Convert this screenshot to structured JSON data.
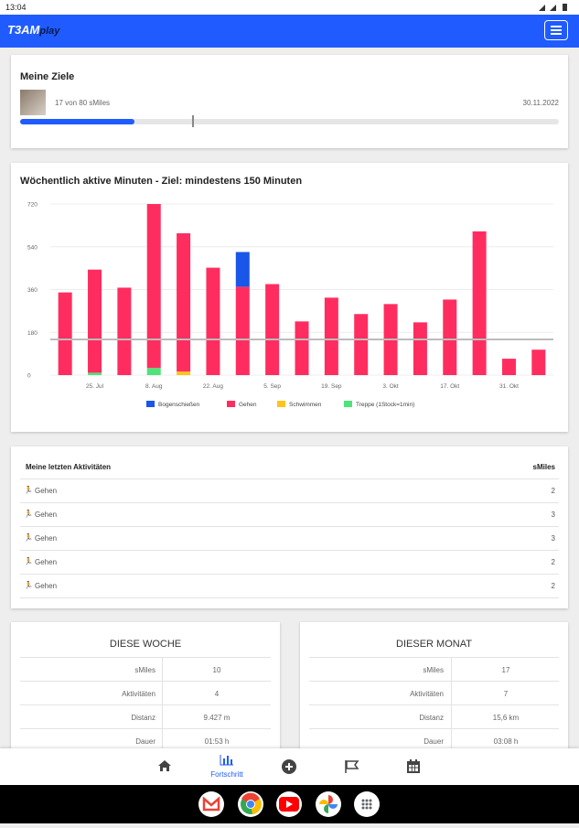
{
  "status_bar": {
    "time": "13:04"
  },
  "header": {
    "logo": "T3AM",
    "logo_suffix": "play"
  },
  "goals": {
    "title": "Meine Ziele",
    "progress_text": "17 von 80 sMiles",
    "date": "30.11.2022",
    "progress_value": 17,
    "progress_max": 80
  },
  "chart_data": {
    "type": "bar",
    "stacked": true,
    "title": "Wöchentlich aktive Minuten - Ziel: mindestens 150 Minuten",
    "categories": [
      null,
      "25. Jul",
      null,
      "8. Aug",
      null,
      "22. Aug",
      null,
      "5. Sep",
      null,
      "19. Sep",
      null,
      "3. Okt",
      null,
      "17. Okt",
      null,
      "31. Okt",
      null
    ],
    "series": [
      {
        "name": "Bogenschießen",
        "color": "#1a56e8",
        "values": [
          0,
          0,
          0,
          0,
          0,
          0,
          146,
          0,
          0,
          0,
          0,
          0,
          0,
          0,
          0,
          0,
          0
        ]
      },
      {
        "name": "Gehen",
        "color": "#ff2d5f",
        "values": [
          348,
          434,
          368,
          690,
          582,
          452,
          372,
          383,
          226,
          326,
          257,
          299,
          222,
          318,
          605,
          69,
          107
        ]
      },
      {
        "name": "Schwimmen",
        "color": "#ffc31a",
        "values": [
          0,
          0,
          0,
          0,
          15,
          0,
          0,
          0,
          0,
          0,
          0,
          0,
          0,
          0,
          0,
          0,
          0
        ]
      },
      {
        "name": "Treppe (1Stock=1min)",
        "color": "#4fe37a",
        "values": [
          0,
          10,
          0,
          30,
          0,
          0,
          0,
          0,
          0,
          0,
          0,
          0,
          0,
          0,
          0,
          0,
          0
        ]
      }
    ],
    "ylim": [
      0,
      720
    ],
    "yticks": [
      0,
      180,
      360,
      540,
      720
    ],
    "grid": true,
    "target_line": {
      "value": 150,
      "color": "#bbbbbb"
    }
  },
  "activities": {
    "title": "Meine letzten Aktivitäten",
    "column": "sMiles",
    "rows": [
      [
        "Gehen",
        2
      ],
      [
        "Gehen",
        3
      ],
      [
        "Gehen",
        3
      ],
      [
        "Gehen",
        2
      ],
      [
        "Gehen",
        2
      ]
    ]
  },
  "stats": [
    {
      "title": "DIESE WOCHE",
      "rows": [
        [
          "sMiles",
          10
        ],
        [
          "Aktivitäten",
          4
        ],
        [
          "Distanz",
          "9.427 m"
        ],
        [
          "Dauer",
          "01:53 h"
        ]
      ]
    },
    {
      "title": "DIESER MONAT",
      "rows": [
        [
          "sMiles",
          17
        ],
        [
          "Aktivitäten",
          7
        ],
        [
          "Distanz",
          "15,6 km"
        ],
        [
          "Dauer",
          "03:08 h"
        ]
      ]
    }
  ],
  "nav": {
    "active_label": "Fortschritt"
  }
}
